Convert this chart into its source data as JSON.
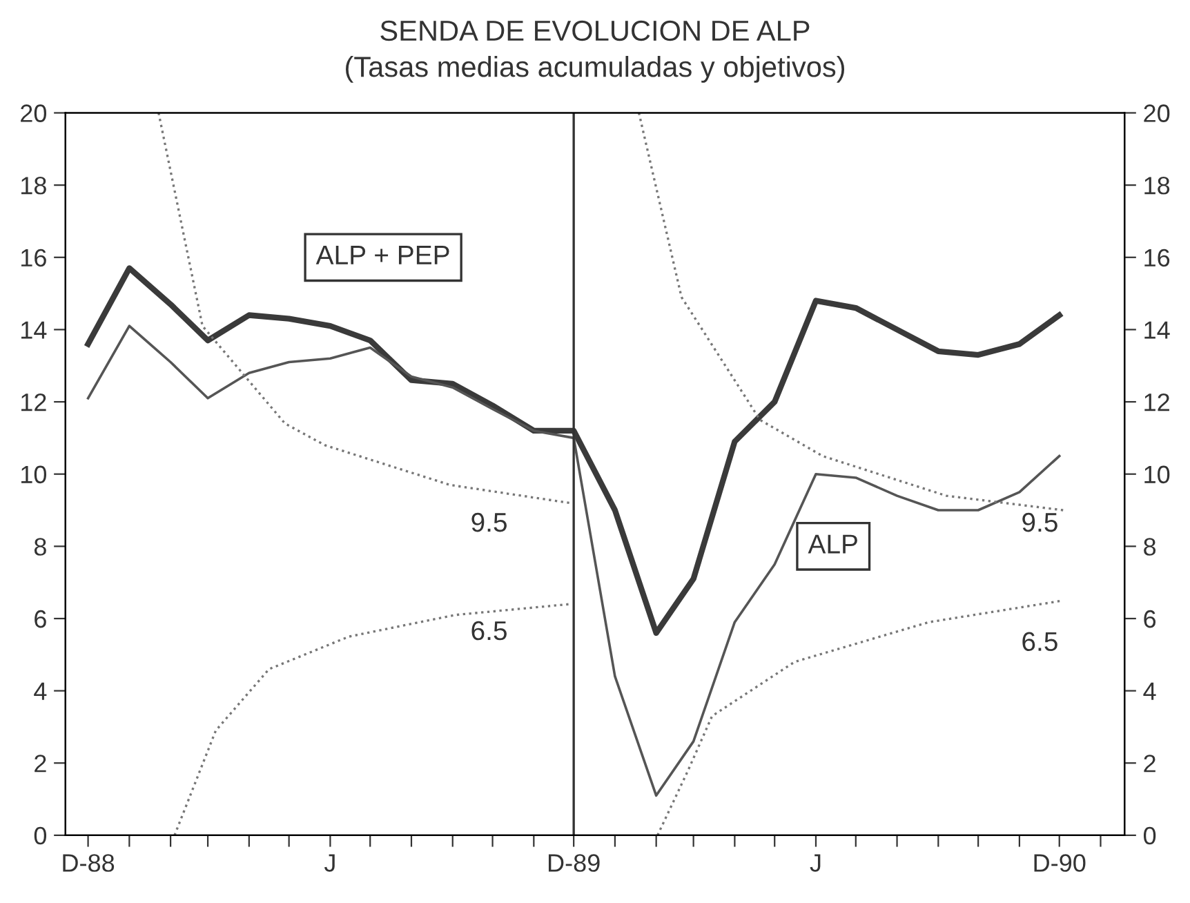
{
  "chart_data": {
    "type": "line",
    "title": "SENDA DE EVOLUCION DE ALP",
    "subtitle": "(Tasas medias acumuladas y objetivos)",
    "x": [
      "1988-12",
      "1989-01",
      "1989-02",
      "1989-03",
      "1989-04",
      "1989-05",
      "1989-06",
      "1989-07",
      "1989-08",
      "1989-09",
      "1989-10",
      "1989-11",
      "1989-12",
      "1990-01",
      "1990-02",
      "1990-03",
      "1990-04",
      "1990-05",
      "1990-06",
      "1990-07",
      "1990-08",
      "1990-09",
      "1990-10",
      "1990-11",
      "1990-12"
    ],
    "series": [
      {
        "color": "#3a3a3a",
        "values": [
          13.6,
          15.7,
          14.7,
          13.7,
          14.4,
          14.3,
          14.1,
          13.7,
          12.6,
          12.5,
          11.9,
          11.2,
          11.2,
          9.0,
          5.6,
          7.1,
          10.9,
          12.0,
          14.8,
          14.6,
          14.0,
          13.4,
          13.3,
          13.6,
          14.4
        ]
      },
      {
        "color": "#555555",
        "values": [
          12.1,
          14.1,
          13.1,
          12.1,
          12.8,
          13.1,
          13.2,
          13.5,
          12.7,
          12.4,
          11.8,
          11.2,
          11.0,
          4.4,
          1.1,
          2.6,
          5.9,
          7.5,
          10.0,
          9.9,
          9.4,
          9.0,
          9.0,
          9.5,
          10.5
        ]
      },
      {
        "color": "#777777",
        "line_style": "dotted",
        "x": [
          "1989-01-23",
          "1989-02-25",
          "1989-04-28",
          "1989-05-28",
          "1989-08-30",
          "1989-11-28"
        ],
        "values": [
          20,
          14.1,
          11.4,
          10.8,
          9.7,
          9.2
        ]
      },
      {
        "color": "#777777",
        "line_style": "dotted",
        "x": [
          "1989-02-04",
          "1989-03-07",
          "1989-04-16",
          "1989-06-15",
          "1989-09-03",
          "1989-11-28"
        ],
        "values": [
          0,
          2.9,
          4.6,
          5.5,
          6.1,
          6.4
        ]
      },
      {
        "color": "#777777",
        "line_style": "dotted",
        "x": [
          "1990-01-19",
          "1990-02-20",
          "1990-04-20",
          "1990-06-06",
          "1990-09-07",
          "1990-12-04"
        ],
        "values": [
          20,
          14.9,
          11.5,
          10.5,
          9.4,
          9.0
        ]
      },
      {
        "color": "#777777",
        "line_style": "dotted",
        "x": [
          "1990-02-02",
          "1990-02-25",
          "1990-03-15",
          "1990-05-16",
          "1990-08-25",
          "1990-12-04"
        ],
        "values": [
          0,
          1.8,
          3.3,
          4.8,
          5.9,
          6.5
        ]
      }
    ],
    "annotations": [
      "ALP + PEP",
      "ALP",
      "9.5",
      "6.5",
      "9.5",
      "6.5"
    ],
    "ref_lines": [
      {
        "axis": "x",
        "value": "1989-12",
        "color": "#333333"
      }
    ],
    "xlim": [
      "1988-11-14",
      "1991-01-19"
    ],
    "xticks": [
      {
        "value": "1988-12",
        "label": "D-88"
      },
      {
        "value": "1989-01",
        "label": null
      },
      {
        "value": "1989-02",
        "label": null
      },
      {
        "value": "1989-03",
        "label": null
      },
      {
        "value": "1989-04",
        "label": null
      },
      {
        "value": "1989-05",
        "label": null
      },
      {
        "value": "1989-06",
        "label": "J"
      },
      {
        "value": "1989-07",
        "label": null
      },
      {
        "value": "1989-08",
        "label": null
      },
      {
        "value": "1989-09",
        "label": null
      },
      {
        "value": "1989-10",
        "label": null
      },
      {
        "value": "1989-11",
        "label": null
      },
      {
        "value": "1989-12",
        "label": "D-89"
      },
      {
        "value": "1990-01",
        "label": null
      },
      {
        "value": "1990-02",
        "label": null
      },
      {
        "value": "1990-03",
        "label": null
      },
      {
        "value": "1990-04",
        "label": null
      },
      {
        "value": "1990-05",
        "label": null
      },
      {
        "value": "1990-06",
        "label": "J"
      },
      {
        "value": "1990-07",
        "label": null
      },
      {
        "value": "1990-08",
        "label": null
      },
      {
        "value": "1990-09",
        "label": null
      },
      {
        "value": "1990-10",
        "label": null
      },
      {
        "value": "1990-11",
        "label": null
      },
      {
        "value": "1990-12",
        "label": "D-90"
      },
      {
        "value": "1991-01",
        "label": null
      }
    ],
    "ylim": [
      0,
      20
    ],
    "yticks": [
      0,
      2,
      4,
      6,
      8,
      10,
      12,
      14,
      16,
      18,
      20
    ],
    "y2lim": [
      0,
      20
    ],
    "y2ticks": [
      0,
      2,
      4,
      6,
      8,
      10,
      12,
      14,
      16,
      18,
      20
    ],
    "grid": false,
    "legend": false,
    "marker": "none",
    "line_style": "solid"
  }
}
